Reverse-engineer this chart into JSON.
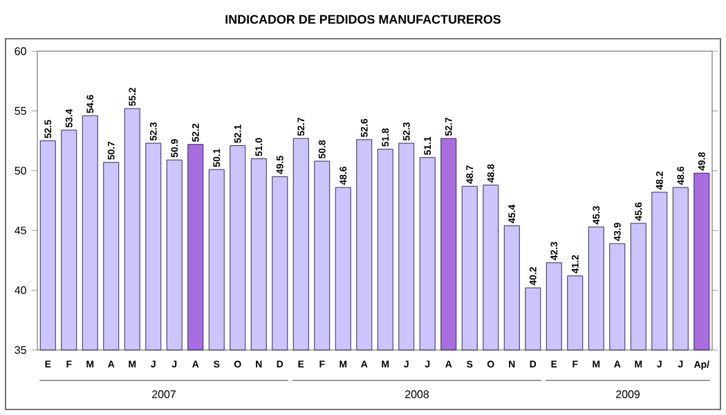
{
  "chart_data": {
    "type": "bar",
    "title": "INDICADOR DE PEDIDOS MANUFACTUREROS",
    "categories": [
      "E",
      "F",
      "M",
      "A",
      "M",
      "J",
      "J",
      "A",
      "S",
      "O",
      "N",
      "D",
      "E",
      "F",
      "M",
      "A",
      "M",
      "J",
      "J",
      "A",
      "S",
      "O",
      "N",
      "D",
      "E",
      "F",
      "M",
      "A",
      "M",
      "J",
      "J",
      "Ap/"
    ],
    "values": [
      52.5,
      53.4,
      54.6,
      50.7,
      55.2,
      52.3,
      50.9,
      52.2,
      50.1,
      52.1,
      51.0,
      49.5,
      52.7,
      50.8,
      48.6,
      52.6,
      51.8,
      52.3,
      51.1,
      52.7,
      48.7,
      48.8,
      45.4,
      40.2,
      42.3,
      41.2,
      45.3,
      43.9,
      45.6,
      48.2,
      48.6,
      49.8
    ],
    "colors": [
      "#ccc4fc",
      "#ccc4fc",
      "#ccc4fc",
      "#ccc4fc",
      "#ccc4fc",
      "#ccc4fc",
      "#ccc4fc",
      "#a86ee0",
      "#ccc4fc",
      "#ccc4fc",
      "#ccc4fc",
      "#ccc4fc",
      "#ccc4fc",
      "#ccc4fc",
      "#ccc4fc",
      "#ccc4fc",
      "#ccc4fc",
      "#ccc4fc",
      "#ccc4fc",
      "#a86ee0",
      "#ccc4fc",
      "#ccc4fc",
      "#ccc4fc",
      "#ccc4fc",
      "#ccc4fc",
      "#ccc4fc",
      "#ccc4fc",
      "#ccc4fc",
      "#ccc4fc",
      "#ccc4fc",
      "#ccc4fc",
      "#a86ee0"
    ],
    "value_labels": [
      "52.5",
      "53.4",
      "54.6",
      "50.7",
      "55.2",
      "52.3",
      "50.9",
      "52.2",
      "50.1",
      "52.1",
      "51.0",
      "49.5",
      "52.7",
      "50.8",
      "48.6",
      "52.6",
      "51.8",
      "52.3",
      "51.1",
      "52.7",
      "48.7",
      "48.8",
      "45.4",
      "40.2",
      "42.3",
      "41.2",
      "45.3",
      "43.9",
      "45.6",
      "48.2",
      "48.6",
      "49.8"
    ],
    "ylim": [
      35,
      60
    ],
    "yticks": [
      35,
      40,
      45,
      50,
      55,
      60
    ],
    "annotations": [
      "2007",
      "2008",
      "2009"
    ]
  }
}
